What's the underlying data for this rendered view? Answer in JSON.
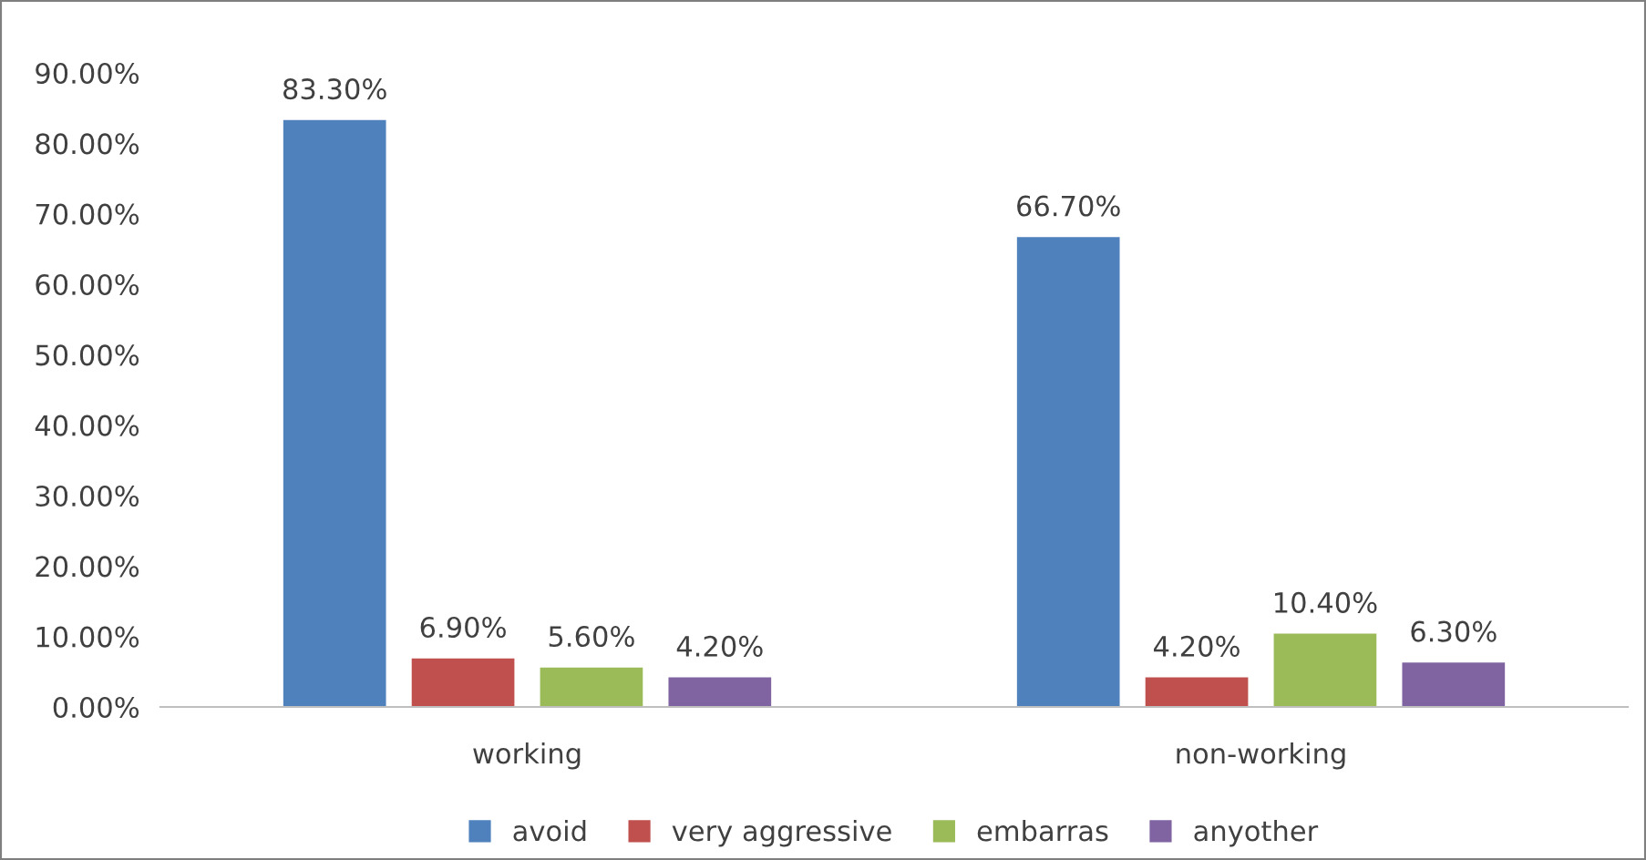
{
  "chart_data": {
    "type": "bar",
    "categories": [
      "working",
      "non-working"
    ],
    "series": [
      {
        "name": "avoid",
        "color": "#4f81bd",
        "values": [
          83.3,
          66.7
        ],
        "value_labels": [
          "83.30%",
          "66.70%"
        ]
      },
      {
        "name": "very aggressive",
        "color": "#c0504d",
        "values": [
          6.9,
          4.2
        ],
        "value_labels": [
          "6.90%",
          "4.20%"
        ]
      },
      {
        "name": "embarras",
        "color": "#9bbb59",
        "values": [
          5.6,
          10.4
        ],
        "value_labels": [
          "5.60%",
          "10.40%"
        ]
      },
      {
        "name": "anyother",
        "color": "#8064a2",
        "values": [
          4.2,
          6.3
        ],
        "value_labels": [
          "4.20%",
          "6.30%"
        ]
      }
    ],
    "ylim": [
      0,
      90
    ],
    "yticks": [
      {
        "value": 0,
        "label": "0.00%"
      },
      {
        "value": 10,
        "label": "10.00%"
      },
      {
        "value": 20,
        "label": "20.00%"
      },
      {
        "value": 30,
        "label": "30.00%"
      },
      {
        "value": 40,
        "label": "40.00%"
      },
      {
        "value": 50,
        "label": "50.00%"
      },
      {
        "value": 60,
        "label": "60.00%"
      },
      {
        "value": 70,
        "label": "70.00%"
      },
      {
        "value": 80,
        "label": "80.00%"
      },
      {
        "value": 90,
        "label": "90.00%"
      }
    ],
    "grid": false,
    "legend": "bottom"
  }
}
